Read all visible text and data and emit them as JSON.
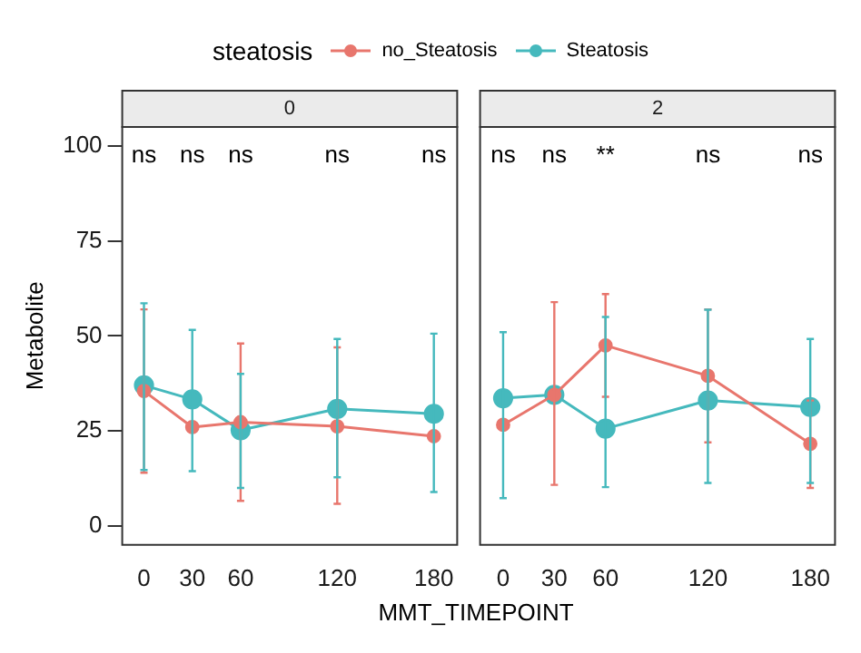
{
  "chart_data": [
    {
      "type": "line",
      "title": "0",
      "xlabel": "MMT_TIMEPOINT",
      "ylabel": "Metabolite",
      "legend_title": "steatosis",
      "legend": "top",
      "marker": "circle",
      "grid": false,
      "x": [
        0,
        30,
        60,
        120,
        180
      ],
      "xlim": [
        -13.5,
        194.5
      ],
      "xticks": [
        0,
        30,
        60,
        120,
        180
      ],
      "ylim": [
        -5,
        105
      ],
      "yticks": [
        0,
        25,
        50,
        75,
        100
      ],
      "series": [
        {
          "name": "no_Steatosis",
          "color": "#e8766d",
          "values": [
            35.5,
            26,
            27.3,
            26.2,
            23.6
          ],
          "errors": [
            [
              14,
              57
            ],
            null,
            [
              6.6,
              48
            ],
            [
              5.8,
              47
            ],
            null
          ]
        },
        {
          "name": "Steatosis",
          "color": "#45b9bd",
          "values": [
            37,
            33.3,
            25.2,
            30.8,
            29.5
          ],
          "errors": [
            [
              14.7,
              58.6
            ],
            [
              14.4,
              51.6
            ],
            [
              10,
              40
            ],
            [
              12.8,
              49.2
            ],
            [
              8.9,
              50.6
            ]
          ]
        }
      ],
      "annotations": [
        "ns",
        "ns",
        "ns",
        "ns",
        "ns"
      ]
    },
    {
      "type": "line",
      "title": "2",
      "marker": "circle",
      "grid": false,
      "tick_labels": "x",
      "x": [
        0,
        30,
        60,
        120,
        180
      ],
      "xlim": [
        -13.5,
        194.5
      ],
      "xticks": [
        0,
        30,
        60,
        120,
        180
      ],
      "ylim": [
        -5,
        105
      ],
      "yticks": [
        0,
        25,
        50,
        75,
        100
      ],
      "series": [
        {
          "color": "#e8766d",
          "values": [
            26.6,
            34.5,
            47.5,
            39.5,
            21.6
          ],
          "errors": [
            null,
            [
              10.8,
              58.9
            ],
            [
              34,
              61
            ],
            [
              22,
              57
            ],
            [
              10,
              33
            ]
          ]
        },
        {
          "color": "#45b9bd",
          "values": [
            33.6,
            34.5,
            25.6,
            33,
            31.3
          ],
          "errors": [
            [
              7.3,
              51
            ],
            null,
            [
              10.2,
              55
            ],
            [
              11.3,
              56.9
            ],
            [
              11.3,
              49.2
            ]
          ]
        }
      ],
      "annotations": [
        "ns",
        "ns",
        "**",
        "ns",
        "ns"
      ]
    }
  ]
}
